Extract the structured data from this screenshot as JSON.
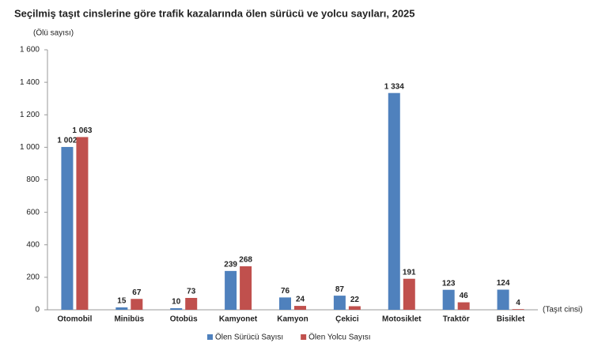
{
  "chart_data": {
    "type": "bar",
    "title": "Seçilmiş taşıt cinslerine göre trafik kazalarında ölen sürücü ve yolcu sayıları, 2025",
    "y_label": "(Ölü sayısı)",
    "x_label": "(Taşıt cinsi)",
    "categories": [
      "Otomobil",
      "Minibüs",
      "Otobüs",
      "Kamyonet",
      "Kamyon",
      "Çekici",
      "Motosiklet",
      "Traktör",
      "Bisiklet"
    ],
    "series": [
      {
        "name": "Ölen Sürücü Sayısı",
        "color": "#4f81bd",
        "values": [
          1002,
          15,
          10,
          239,
          76,
          87,
          1334,
          123,
          124
        ],
        "value_labels": [
          "1 002",
          "15",
          "10",
          "239",
          "76",
          "87",
          "1 334",
          "123",
          "124"
        ]
      },
      {
        "name": "Ölen Yolcu Sayısı",
        "color": "#c0504d",
        "values": [
          1063,
          67,
          73,
          268,
          24,
          22,
          191,
          46,
          4
        ],
        "value_labels": [
          "1 063",
          "67",
          "73",
          "268",
          "24",
          "22",
          "191",
          "46",
          "4"
        ]
      }
    ],
    "ylim": [
      0,
      1600
    ],
    "yticks": [
      0,
      200,
      400,
      600,
      800,
      {
        "value": 1000,
        "label": "1 000"
      },
      {
        "value": 1200,
        "label": "1 200"
      },
      {
        "value": 1400,
        "label": "1 400"
      },
      {
        "value": 1600,
        "label": "1 600"
      }
    ],
    "grid": false
  }
}
